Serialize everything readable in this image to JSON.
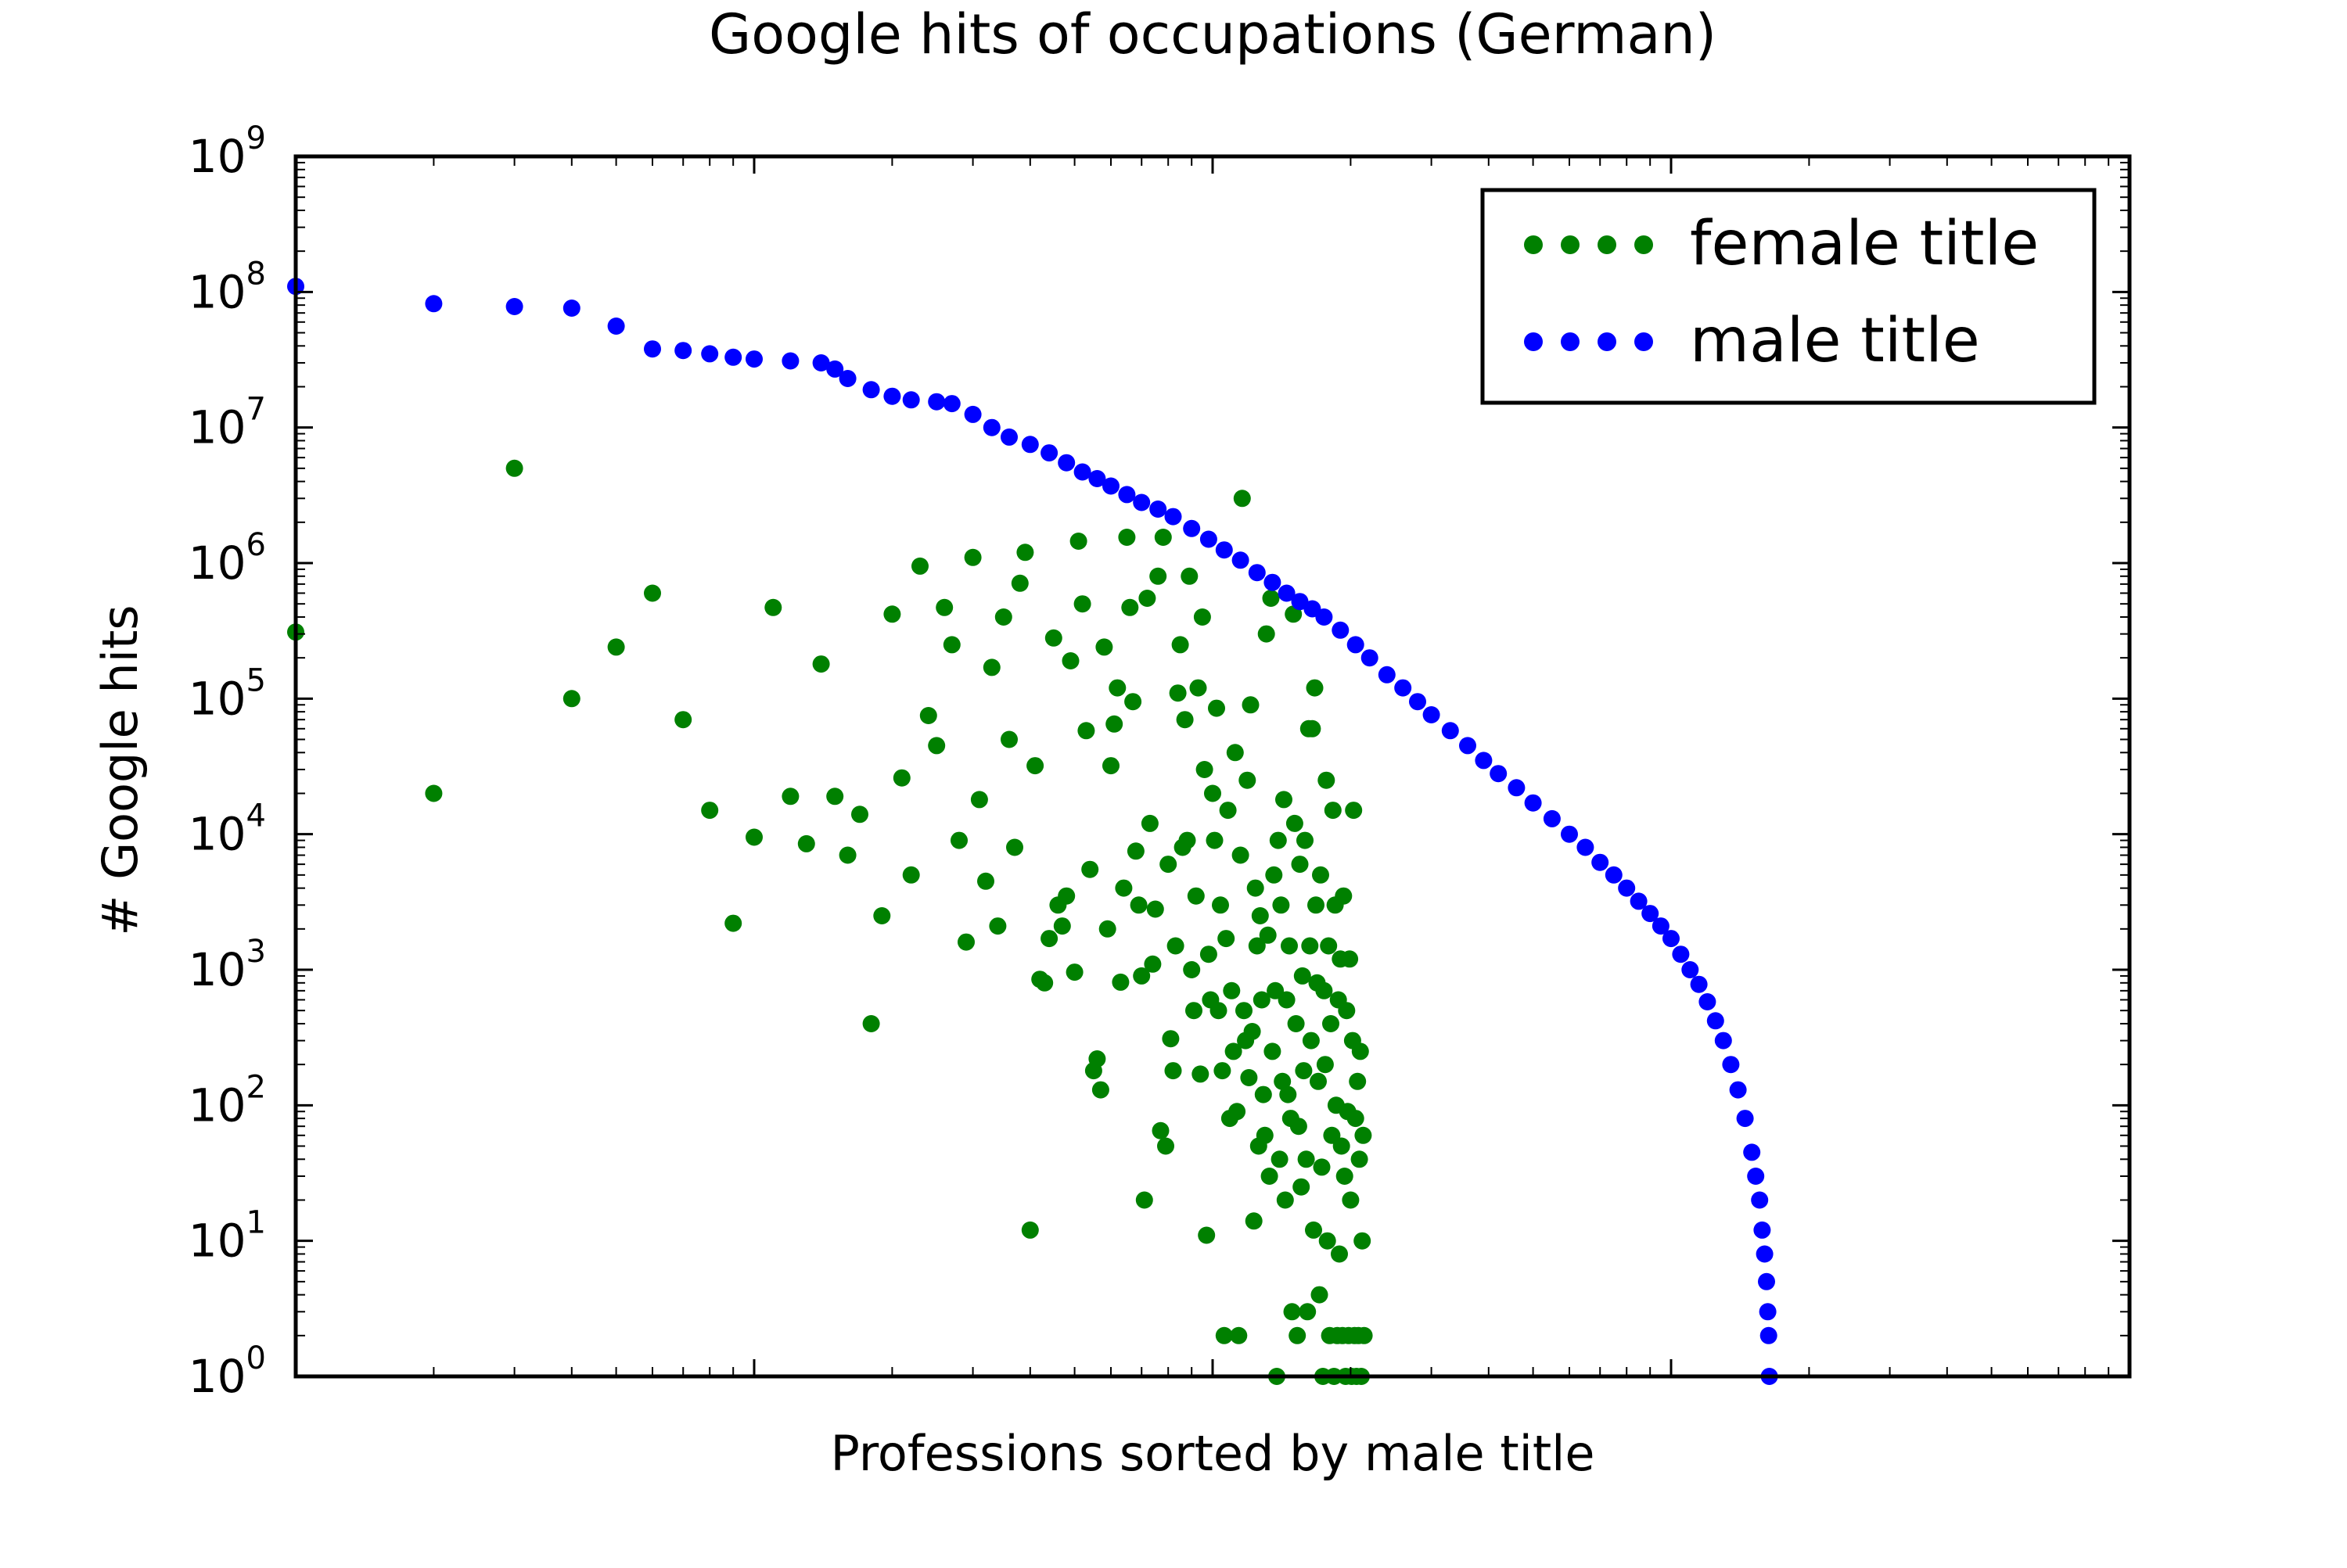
{
  "chart_data": {
    "type": "scatter",
    "title": "Google hits of occupations (German)",
    "xlabel": "Professions sorted by male title",
    "ylabel": "# Google hits",
    "x_scale": "log",
    "y_scale": "log",
    "xlim": [
      1,
      10000
    ],
    "ylim": [
      1,
      1000000000
    ],
    "y_ticks": [
      {
        "value": 1,
        "base": "10",
        "exp": "0"
      },
      {
        "value": 10,
        "base": "10",
        "exp": "1"
      },
      {
        "value": 100,
        "base": "10",
        "exp": "2"
      },
      {
        "value": 1000,
        "base": "10",
        "exp": "3"
      },
      {
        "value": 10000,
        "base": "10",
        "exp": "4"
      },
      {
        "value": 100000,
        "base": "10",
        "exp": "5"
      },
      {
        "value": 1000000,
        "base": "10",
        "exp": "6"
      },
      {
        "value": 10000000,
        "base": "10",
        "exp": "7"
      },
      {
        "value": 100000000,
        "base": "10",
        "exp": "8"
      },
      {
        "value": 1000000000,
        "base": "10",
        "exp": "9"
      }
    ],
    "grid": false,
    "legend_position": "top-right",
    "series": [
      {
        "name": "female title",
        "color": "#008000",
        "points": [
          [
            1,
            310000
          ],
          [
            2,
            20000
          ],
          [
            3,
            5000000
          ],
          [
            4,
            100000
          ],
          [
            5,
            240000
          ],
          [
            6,
            600000
          ],
          [
            7,
            70000
          ],
          [
            8,
            15000
          ],
          [
            9,
            2200
          ],
          [
            10,
            9500
          ],
          [
            11,
            470000
          ],
          [
            12,
            19000
          ],
          [
            13,
            8500
          ],
          [
            14,
            180000
          ],
          [
            15,
            19000
          ],
          [
            16,
            7000
          ],
          [
            17,
            14000
          ],
          [
            18,
            400
          ],
          [
            19,
            2500
          ],
          [
            20,
            420000
          ],
          [
            21,
            26000
          ],
          [
            22,
            5000
          ],
          [
            23,
            950000
          ],
          [
            24,
            75000
          ],
          [
            25,
            45000
          ],
          [
            26,
            470000
          ],
          [
            27,
            250000
          ],
          [
            28,
            9000
          ],
          [
            29,
            1600
          ],
          [
            30,
            1100000
          ],
          [
            31,
            18000
          ],
          [
            32,
            4500
          ],
          [
            33,
            170000
          ],
          [
            34,
            2100
          ],
          [
            35,
            400000
          ],
          [
            36,
            50000
          ],
          [
            37,
            8000
          ],
          [
            38,
            710000
          ],
          [
            39,
            1200000
          ],
          [
            40,
            12
          ],
          [
            41,
            32000
          ],
          [
            42,
            850
          ],
          [
            43,
            800
          ],
          [
            44,
            1700
          ],
          [
            45,
            280000
          ],
          [
            46,
            3000
          ],
          [
            47,
            2100
          ],
          [
            48,
            3500
          ],
          [
            49,
            190000
          ],
          [
            50,
            960
          ],
          [
            51,
            1450000
          ],
          [
            52,
            500000
          ],
          [
            53,
            58000
          ],
          [
            54,
            5500
          ],
          [
            55,
            180
          ],
          [
            56,
            220
          ],
          [
            57,
            130
          ],
          [
            58,
            240000
          ],
          [
            59,
            2000
          ],
          [
            60,
            32000
          ],
          [
            61,
            65000
          ],
          [
            62,
            120000
          ],
          [
            63,
            810
          ],
          [
            64,
            4000
          ],
          [
            65,
            1550000
          ],
          [
            66,
            470000
          ],
          [
            67,
            95000
          ],
          [
            68,
            7500
          ],
          [
            69,
            3000
          ],
          [
            70,
            900
          ],
          [
            71,
            20
          ],
          [
            72,
            550000
          ],
          [
            73,
            12000
          ],
          [
            74,
            1100
          ],
          [
            75,
            2800
          ],
          [
            76,
            800000
          ],
          [
            77,
            65
          ],
          [
            78,
            1550000
          ],
          [
            79,
            50
          ],
          [
            80,
            6000
          ],
          [
            81,
            310
          ],
          [
            82,
            180
          ],
          [
            83,
            1500
          ],
          [
            84,
            110000
          ],
          [
            85,
            250000
          ],
          [
            86,
            8000
          ],
          [
            87,
            70000
          ],
          [
            88,
            9000
          ],
          [
            89,
            800000
          ],
          [
            90,
            1000
          ],
          [
            91,
            500
          ],
          [
            92,
            3500
          ],
          [
            93,
            120000
          ],
          [
            94,
            170
          ],
          [
            95,
            400000
          ],
          [
            96,
            30000
          ],
          [
            97,
            11
          ],
          [
            98,
            1300
          ],
          [
            99,
            600
          ],
          [
            100,
            20000
          ],
          [
            101,
            9000
          ],
          [
            102,
            85000
          ],
          [
            103,
            500
          ],
          [
            104,
            3000
          ],
          [
            105,
            180
          ],
          [
            106,
            2
          ],
          [
            107,
            1700
          ],
          [
            108,
            15000
          ],
          [
            109,
            80
          ],
          [
            110,
            700
          ],
          [
            111,
            250
          ],
          [
            112,
            40000
          ],
          [
            113,
            90
          ],
          [
            114,
            2
          ],
          [
            115,
            7000
          ],
          [
            116,
            3000000
          ],
          [
            117,
            500
          ],
          [
            118,
            300
          ],
          [
            119,
            25000
          ],
          [
            120,
            160
          ],
          [
            121,
            90000
          ],
          [
            122,
            350
          ],
          [
            123,
            14
          ],
          [
            124,
            4000
          ],
          [
            125,
            1500
          ],
          [
            126,
            50
          ],
          [
            127,
            2500
          ],
          [
            128,
            600
          ],
          [
            129,
            120
          ],
          [
            130,
            60
          ],
          [
            131,
            300000
          ],
          [
            132,
            1800
          ],
          [
            133,
            30
          ],
          [
            134,
            550000
          ],
          [
            135,
            250
          ],
          [
            136,
            5000
          ],
          [
            137,
            700
          ],
          [
            138,
            1
          ],
          [
            139,
            9000
          ],
          [
            140,
            40
          ],
          [
            141,
            3000
          ],
          [
            142,
            150
          ],
          [
            143,
            18000
          ],
          [
            144,
            20
          ],
          [
            145,
            600
          ],
          [
            146,
            120
          ],
          [
            147,
            1500
          ],
          [
            148,
            80
          ],
          [
            149,
            3
          ],
          [
            150,
            420000
          ],
          [
            151,
            12000
          ],
          [
            152,
            400
          ],
          [
            153,
            2
          ],
          [
            154,
            70
          ],
          [
            155,
            6000
          ],
          [
            156,
            25
          ],
          [
            157,
            900
          ],
          [
            158,
            180
          ],
          [
            159,
            9000
          ],
          [
            160,
            40
          ],
          [
            161,
            3
          ],
          [
            162,
            60000
          ],
          [
            163,
            1500
          ],
          [
            164,
            300
          ],
          [
            165,
            60000
          ],
          [
            166,
            12
          ],
          [
            167,
            120000
          ],
          [
            168,
            3000
          ],
          [
            169,
            800
          ],
          [
            170,
            150
          ],
          [
            171,
            4
          ],
          [
            172,
            5000
          ],
          [
            173,
            35
          ],
          [
            174,
            1
          ],
          [
            175,
            700
          ],
          [
            176,
            200
          ],
          [
            177,
            25000
          ],
          [
            178,
            10
          ],
          [
            179,
            1500
          ],
          [
            180,
            2
          ],
          [
            181,
            400
          ],
          [
            182,
            60
          ],
          [
            183,
            15000
          ],
          [
            184,
            1
          ],
          [
            185,
            3000
          ],
          [
            186,
            100
          ],
          [
            187,
            2
          ],
          [
            188,
            600
          ],
          [
            189,
            8
          ],
          [
            190,
            1200
          ],
          [
            191,
            50
          ],
          [
            192,
            2
          ],
          [
            193,
            3500
          ],
          [
            194,
            30
          ],
          [
            195,
            1
          ],
          [
            196,
            500
          ],
          [
            197,
            90
          ],
          [
            198,
            2
          ],
          [
            199,
            1200
          ],
          [
            200,
            20
          ],
          [
            201,
            1
          ],
          [
            202,
            300
          ],
          [
            203,
            15000
          ],
          [
            204,
            2
          ],
          [
            205,
            80
          ],
          [
            206,
            1
          ],
          [
            207,
            150
          ],
          [
            208,
            2
          ],
          [
            209,
            40
          ],
          [
            210,
            250
          ],
          [
            211,
            1
          ],
          [
            212,
            10
          ],
          [
            213,
            60
          ],
          [
            214,
            2
          ]
        ]
      },
      {
        "name": "male title",
        "color": "#0000ff",
        "points": [
          [
            1,
            110000000
          ],
          [
            2,
            82000000
          ],
          [
            3,
            78000000
          ],
          [
            4,
            76000000
          ],
          [
            5,
            56000000
          ],
          [
            6,
            38000000
          ],
          [
            7,
            37000000
          ],
          [
            8,
            35000000
          ],
          [
            9,
            33000000
          ],
          [
            10,
            32000000
          ],
          [
            12,
            31000000
          ],
          [
            14,
            30000000
          ],
          [
            15,
            27000000
          ],
          [
            16,
            23000000
          ],
          [
            18,
            19000000
          ],
          [
            20,
            17000000
          ],
          [
            22,
            16000000
          ],
          [
            25,
            15500000
          ],
          [
            27,
            15000000
          ],
          [
            30,
            12500000
          ],
          [
            33,
            10000000
          ],
          [
            36,
            8500000
          ],
          [
            40,
            7500000
          ],
          [
            44,
            6500000
          ],
          [
            48,
            5500000
          ],
          [
            52,
            4700000
          ],
          [
            56,
            4200000
          ],
          [
            60,
            3700000
          ],
          [
            65,
            3200000
          ],
          [
            70,
            2800000
          ],
          [
            76,
            2500000
          ],
          [
            82,
            2200000
          ],
          [
            90,
            1800000
          ],
          [
            98,
            1500000
          ],
          [
            106,
            1250000
          ],
          [
            115,
            1050000
          ],
          [
            125,
            850000
          ],
          [
            135,
            720000
          ],
          [
            145,
            600000
          ],
          [
            155,
            520000
          ],
          [
            165,
            460000
          ],
          [
            175,
            400000
          ],
          [
            190,
            320000
          ],
          [
            205,
            250000
          ],
          [
            220,
            200000
          ],
          [
            240,
            150000
          ],
          [
            260,
            120000
          ],
          [
            280,
            95000
          ],
          [
            300,
            76000
          ],
          [
            330,
            58000
          ],
          [
            360,
            45000
          ],
          [
            390,
            35000
          ],
          [
            420,
            28000
          ],
          [
            460,
            22000
          ],
          [
            500,
            17000
          ],
          [
            550,
            13000
          ],
          [
            600,
            10000
          ],
          [
            650,
            8000
          ],
          [
            700,
            6200
          ],
          [
            750,
            5000
          ],
          [
            800,
            4000
          ],
          [
            850,
            3200
          ],
          [
            900,
            2600
          ],
          [
            950,
            2100
          ],
          [
            1000,
            1700
          ],
          [
            1050,
            1300
          ],
          [
            1100,
            1000
          ],
          [
            1150,
            780
          ],
          [
            1200,
            580
          ],
          [
            1250,
            420
          ],
          [
            1300,
            300
          ],
          [
            1350,
            200
          ],
          [
            1400,
            130
          ],
          [
            1450,
            80
          ],
          [
            1500,
            45
          ],
          [
            1530,
            30
          ],
          [
            1560,
            20
          ],
          [
            1580,
            12
          ],
          [
            1600,
            8
          ],
          [
            1615,
            5
          ],
          [
            1625,
            3
          ],
          [
            1632,
            2
          ],
          [
            1638,
            1
          ]
        ]
      }
    ]
  }
}
